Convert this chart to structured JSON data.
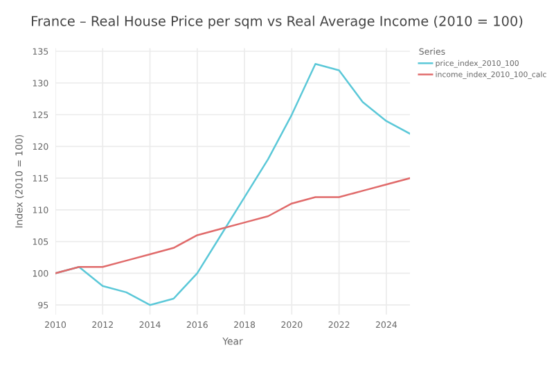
{
  "chart_data": {
    "type": "line",
    "title": "France – Real House Price per sqm vs Real Average Income (2010 = 100)",
    "xlabel": "Year",
    "ylabel": "Index (2010 = 100)",
    "legend_title": "Series",
    "x": [
      2010,
      2011,
      2012,
      2013,
      2014,
      2015,
      2016,
      2017,
      2018,
      2019,
      2020,
      2021,
      2022,
      2023,
      2024,
      2025
    ],
    "series": [
      {
        "name": "price_index_2010_100",
        "color": "#5bc8d8",
        "values": [
          100,
          101,
          98,
          97,
          95,
          96,
          100,
          106,
          112,
          118,
          125,
          133,
          132,
          127,
          124,
          122
        ]
      },
      {
        "name": "income_index_2010_100_calc",
        "color": "#e06a6a",
        "values": [
          100,
          101,
          101,
          102,
          103,
          104,
          106,
          107,
          108,
          109,
          111,
          112,
          112,
          113,
          114,
          115
        ]
      }
    ],
    "xlim": [
      2010,
      2025
    ],
    "xticks": [
      2010,
      2012,
      2014,
      2016,
      2018,
      2020,
      2022,
      2024
    ],
    "ylim": [
      93.5,
      135.5
    ],
    "yticks": [
      95,
      100,
      105,
      110,
      115,
      120,
      125,
      130,
      135
    ],
    "grid": true,
    "legend": "right",
    "marker": "none",
    "line_style": "solid"
  }
}
